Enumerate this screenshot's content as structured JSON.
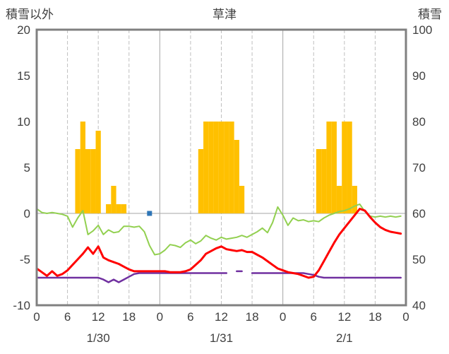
{
  "chart_data": {
    "type": "bar+line",
    "title": "草津",
    "left_axis": {
      "title": "積雪以外",
      "min": -10,
      "max": 20,
      "ticks": [
        20,
        15,
        10,
        5,
        0,
        -5,
        -10
      ]
    },
    "right_axis": {
      "title": "積雪",
      "min": 40,
      "max": 100,
      "ticks": [
        100,
        90,
        80,
        70,
        60,
        50,
        40
      ]
    },
    "x_hours_total": 72,
    "x_tick_hours": [
      0,
      6,
      12,
      18,
      24,
      30,
      36,
      42,
      48,
      54,
      60,
      66,
      72
    ],
    "x_tick_labels": [
      "0",
      "6",
      "12",
      "18",
      "0",
      "6",
      "12",
      "18",
      "0",
      "6",
      "12",
      "18",
      "0"
    ],
    "day_labels": [
      {
        "label": "1/30",
        "hour": 12
      },
      {
        "label": "1/31",
        "hour": 36
      },
      {
        "label": "2/1",
        "hour": 60
      }
    ],
    "grid": {
      "vertical_every_hours": 6,
      "solid_at_day_boundaries": true,
      "horizontal_zero_line": true
    },
    "series": {
      "bars": {
        "name": "orange-bars",
        "color_key": "orange",
        "points": [
          [
            8,
            7
          ],
          [
            9,
            10
          ],
          [
            10,
            7
          ],
          [
            11,
            7
          ],
          [
            12,
            9
          ],
          [
            14,
            1
          ],
          [
            15,
            3
          ],
          [
            16,
            1
          ],
          [
            17,
            1
          ],
          [
            32,
            7
          ],
          [
            33,
            10
          ],
          [
            34,
            10
          ],
          [
            35,
            10
          ],
          [
            36,
            10
          ],
          [
            37,
            10
          ],
          [
            38,
            10
          ],
          [
            39,
            8
          ],
          [
            40,
            3
          ],
          [
            55,
            7
          ],
          [
            56,
            7
          ],
          [
            57,
            10
          ],
          [
            58,
            10
          ],
          [
            59,
            3
          ],
          [
            60,
            10
          ],
          [
            61,
            10
          ],
          [
            62,
            3
          ]
        ]
      },
      "lines": [
        {
          "name": "green-line",
          "color_key": "green",
          "width": 2,
          "values": [
            0.5,
            0.1,
            0.0,
            0.1,
            0.0,
            -0.1,
            -0.3,
            -1.5,
            -0.5,
            0.3,
            -2.3,
            -1.9,
            -1.3,
            -2.3,
            -1.8,
            -2.1,
            -2.0,
            -1.4,
            -1.4,
            -1.5,
            -1.4,
            -2.0,
            -3.5,
            -4.5,
            -4.4,
            -4.0,
            -3.4,
            -3.5,
            -3.7,
            -3.2,
            -2.9,
            -3.3,
            -3.0,
            -2.4,
            -2.7,
            -2.9,
            -2.6,
            -2.8,
            -2.7,
            -2.6,
            -2.4,
            -2.6,
            -2.3,
            -2.0,
            -1.6,
            -2.1,
            -1.0,
            0.7,
            -0.2,
            -1.3,
            -0.5,
            -0.8,
            -0.7,
            -0.9,
            -0.8,
            -0.9,
            -0.5,
            -0.2,
            0.0,
            0.2,
            0.3,
            0.5,
            0.8,
            1.0,
            0.2,
            -0.3,
            -0.4,
            -0.3,
            -0.4,
            -0.3,
            -0.4,
            -0.3
          ]
        },
        {
          "name": "purple-line",
          "color_key": "purple",
          "width": 2.5,
          "values": [
            -7.0,
            -7.0,
            -7.0,
            -7.0,
            -7.0,
            -7.0,
            -7.0,
            -7.0,
            -7.0,
            -7.0,
            -7.0,
            -7.0,
            -7.0,
            -7.2,
            -7.5,
            -7.2,
            -7.5,
            -7.2,
            -6.9,
            -6.6,
            -6.5,
            -6.5,
            -6.5,
            -6.5,
            -6.5,
            -6.5,
            -6.5,
            -6.5,
            -6.5,
            -6.5,
            -6.5,
            -6.5,
            -6.5,
            -6.5,
            -6.5,
            -6.5,
            -6.5,
            -6.5,
            null,
            -6.3,
            -6.3,
            null,
            -6.5,
            -6.5,
            -6.5,
            -6.5,
            -6.5,
            -6.5,
            -6.5,
            -6.5,
            -6.5,
            -6.5,
            -6.5,
            -6.6,
            -6.7,
            -6.9,
            -7.0,
            -7.0,
            -7.0,
            -7.0,
            -7.0,
            -7.0,
            -7.0,
            -7.0,
            -7.0,
            -7.0,
            -7.0,
            -7.0,
            -7.0,
            -7.0,
            -7.0,
            -7.0
          ]
        },
        {
          "name": "red-line",
          "color_key": "red",
          "width": 3,
          "values": [
            -6.0,
            -6.4,
            -6.8,
            -6.3,
            -6.8,
            -6.6,
            -6.2,
            -5.6,
            -5.0,
            -4.4,
            -3.7,
            -4.4,
            -3.6,
            -4.8,
            -5.1,
            -5.3,
            -5.5,
            -5.8,
            -6.1,
            -6.3,
            -6.3,
            -6.3,
            -6.3,
            -6.3,
            -6.3,
            -6.3,
            -6.4,
            -6.4,
            -6.4,
            -6.3,
            -6.1,
            -5.6,
            -5.1,
            -4.4,
            -4.1,
            -3.8,
            -3.6,
            -3.9,
            -4.0,
            -4.1,
            -4.0,
            -4.2,
            -4.2,
            -4.5,
            -4.8,
            -5.2,
            -5.6,
            -6.0,
            -6.2,
            -6.4,
            -6.5,
            -6.6,
            -6.8,
            -7.0,
            -6.9,
            -6.2,
            -5.2,
            -4.2,
            -3.2,
            -2.3,
            -1.6,
            -0.9,
            -0.2,
            0.5,
            0.3,
            -0.4,
            -1.0,
            -1.5,
            -1.8,
            -2.0,
            -2.1,
            -2.2
          ]
        }
      ],
      "point_marker": {
        "name": "blue-square-marker",
        "color_key": "blue",
        "hour": 22,
        "value": 0,
        "size": 7
      }
    }
  },
  "colors": {
    "orange": "#FFC000",
    "red": "#FF0000",
    "green": "#92D050",
    "purple": "#7030A0",
    "blue": "#2E75B6",
    "frame": "#808080",
    "grid_solid": "#A6A6A6",
    "grid_dashed": "#BFBFBF",
    "text": "#404040"
  }
}
